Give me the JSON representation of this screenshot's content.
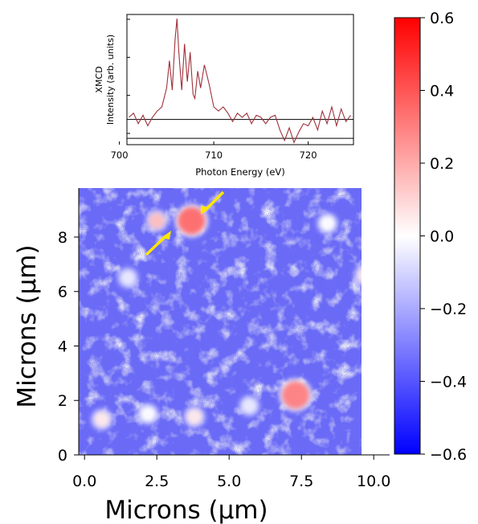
{
  "chart_data": [
    {
      "type": "heatmap",
      "title": "",
      "xlabel": "Microns (μm)",
      "ylabel": "Microns (μm)",
      "xlim": [
        -0.2,
        10.0
      ],
      "ylim": [
        0,
        9.8
      ],
      "x_ticks": [
        "0.0",
        "2.5",
        "5.0",
        "7.5",
        "10.0"
      ],
      "y_ticks": [
        "0",
        "2",
        "4",
        "6",
        "8"
      ],
      "colormap": "bwr",
      "colormap_colors": {
        "low": "#0000ff",
        "mid": "#ffffff",
        "high": "#ff0000"
      },
      "color_range": [
        -0.6,
        0.6
      ],
      "background_level": -0.35,
      "colorbar": {
        "ticks": [
          "0.6",
          "0.4",
          "0.2",
          "0.0",
          "−0.2",
          "−0.4",
          "−0.6"
        ],
        "values": [
          0.6,
          0.4,
          0.2,
          0.0,
          -0.2,
          -0.4,
          -0.6
        ],
        "location": "right"
      },
      "features": [
        {
          "x": 3.7,
          "y": 8.6,
          "value": 0.35
        },
        {
          "x": 7.3,
          "y": 2.2,
          "value": 0.3
        },
        {
          "x": 2.5,
          "y": 8.6,
          "value": 0.15
        },
        {
          "x": 9.7,
          "y": 6.6,
          "value": 0.05
        },
        {
          "x": 3.8,
          "y": 1.4,
          "value": 0.05
        },
        {
          "x": 0.6,
          "y": 1.3,
          "value": 0.05
        },
        {
          "x": 2.2,
          "y": 1.5,
          "value": 0.0
        },
        {
          "x": 8.4,
          "y": 8.5,
          "value": 0.0
        },
        {
          "x": 1.5,
          "y": 6.5,
          "value": -0.05
        },
        {
          "x": 5.7,
          "y": 1.8,
          "value": -0.05
        }
      ],
      "annotations": [
        {
          "type": "arrow",
          "color": "#ffff00",
          "target": "upper-left particle"
        }
      ]
    },
    {
      "type": "line",
      "title": "",
      "xlabel": "Photon Energy (eV)",
      "ylabel": "XMCD\nIntensity (arb. units)",
      "ylabel_lines": [
        "XMCD",
        "Intensity (arb. units)"
      ],
      "xlim": [
        700.8,
        724.8
      ],
      "x_ticks": [
        "700",
        "710",
        "720"
      ],
      "ylim": [
        -1.2,
        5.0
      ],
      "y_tick_marks": 4,
      "series_color": "#a0303a",
      "reference_lines": [
        0.0,
        -0.9
      ],
      "x": [
        701.0,
        701.5,
        702.0,
        702.5,
        703.0,
        703.5,
        704.0,
        704.5,
        705.0,
        705.3,
        705.6,
        705.9,
        706.1,
        706.3,
        706.6,
        706.9,
        707.2,
        707.5,
        707.8,
        708.0,
        708.3,
        708.6,
        709.0,
        709.5,
        710.0,
        710.5,
        711.0,
        711.5,
        712.0,
        712.5,
        713.0,
        713.5,
        714.0,
        714.5,
        715.0,
        715.5,
        716.0,
        716.5,
        717.0,
        717.5,
        718.0,
        718.5,
        719.0,
        719.5,
        720.0,
        720.5,
        721.0,
        721.5,
        722.0,
        722.5,
        723.0,
        723.5,
        724.0,
        724.5
      ],
      "y": [
        0.1,
        0.3,
        -0.2,
        0.2,
        -0.3,
        0.1,
        0.4,
        0.6,
        1.5,
        2.8,
        1.4,
        3.8,
        4.8,
        3.2,
        1.4,
        3.6,
        1.8,
        3.2,
        1.2,
        1.0,
        2.3,
        1.5,
        2.6,
        1.7,
        0.6,
        0.4,
        0.6,
        0.3,
        -0.1,
        0.3,
        0.1,
        0.3,
        -0.2,
        0.2,
        0.1,
        -0.2,
        0.1,
        0.2,
        -0.5,
        -1.0,
        -0.4,
        -1.1,
        -0.6,
        -0.2,
        -0.3,
        0.1,
        -0.5,
        0.4,
        -0.2,
        0.6,
        -0.3,
        0.5,
        -0.1,
        0.2
      ]
    }
  ]
}
